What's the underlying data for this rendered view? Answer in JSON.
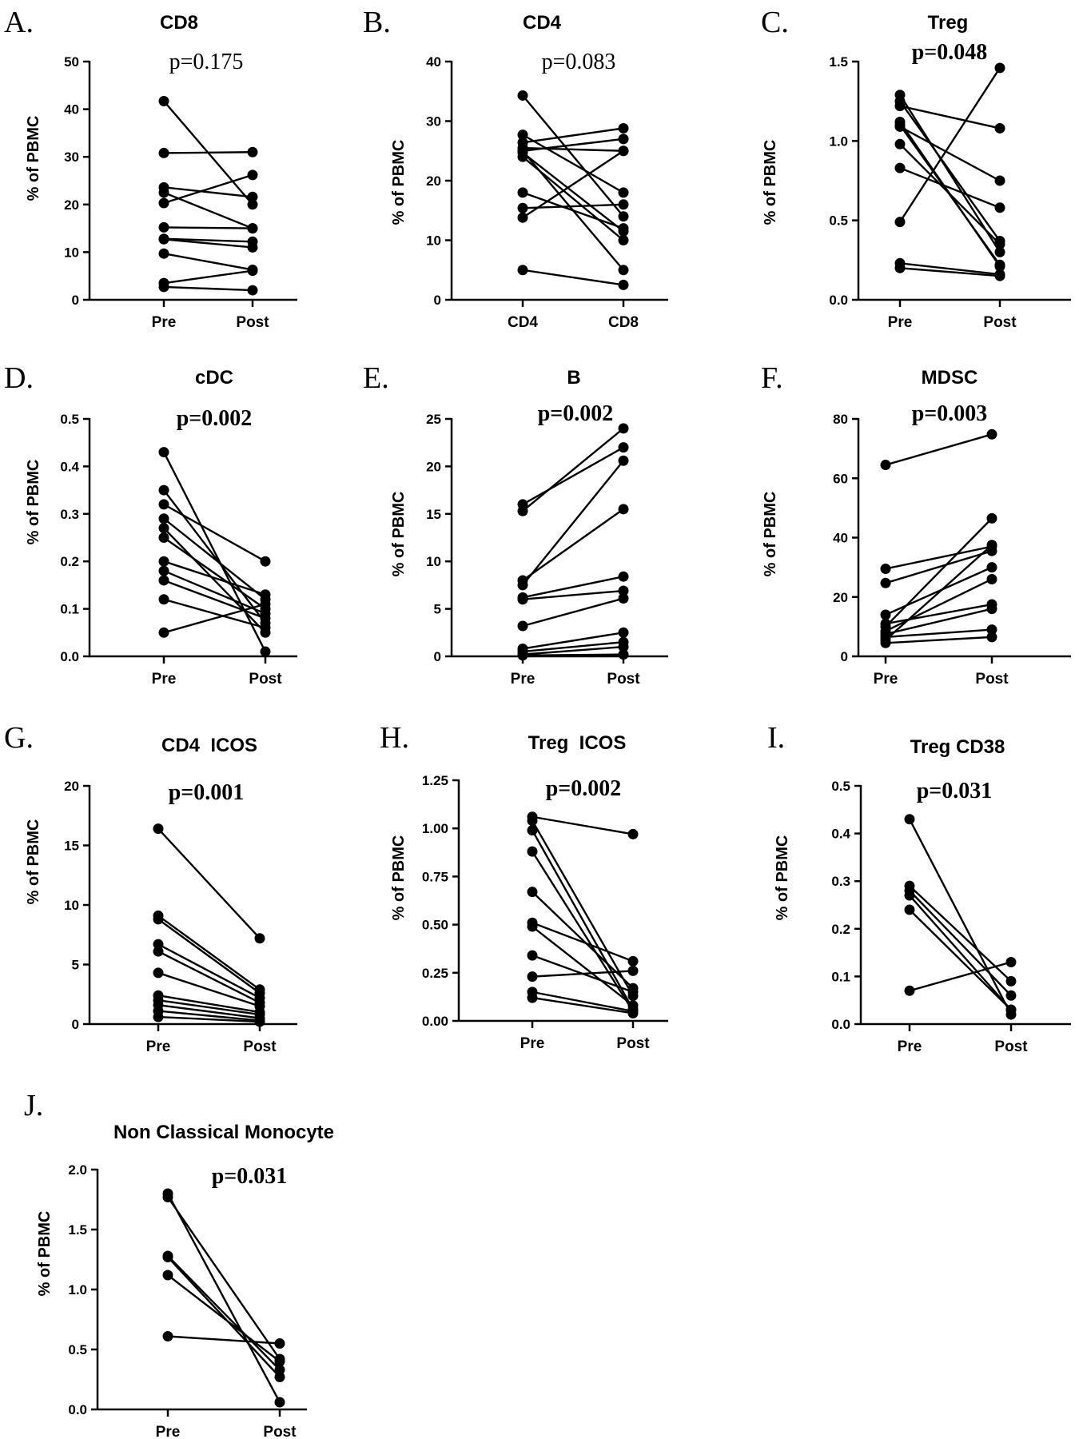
{
  "chart_data": [
    {
      "letter": "A.",
      "type": "line",
      "title": "CD8",
      "p_value": "p=0.175",
      "p_bold": false,
      "ylabel": "% of PBMC",
      "categories": [
        "Pre",
        "Post"
      ],
      "ylim": [
        0,
        50
      ],
      "yticks": [
        "0",
        "10",
        "20",
        "30",
        "40",
        "50"
      ],
      "pairs": [
        [
          41.7,
          20.0
        ],
        [
          30.8,
          31.0
        ],
        [
          23.6,
          21.6
        ],
        [
          22.5,
          15.0
        ],
        [
          20.3,
          26.2
        ],
        [
          15.2,
          15.0
        ],
        [
          12.8,
          12.2
        ],
        [
          12.7,
          11.0
        ],
        [
          9.7,
          6.3
        ],
        [
          3.5,
          6.1
        ],
        [
          2.7,
          2.0
        ]
      ]
    },
    {
      "letter": "B.",
      "type": "line",
      "title": "CD4",
      "p_value": "p=0.083",
      "p_bold": false,
      "ylabel": "% of PBMC",
      "categories": [
        "CD4",
        "CD8"
      ],
      "ylim": [
        0,
        40
      ],
      "yticks": [
        "0",
        "10",
        "20",
        "30",
        "40"
      ],
      "pairs": [
        [
          34.3,
          14.0
        ],
        [
          27.7,
          18.0
        ],
        [
          26.4,
          28.8
        ],
        [
          25.5,
          25.0
        ],
        [
          25.0,
          27.0
        ],
        [
          24.7,
          11.5
        ],
        [
          24.0,
          10.0
        ],
        [
          18.0,
          12.0
        ],
        [
          15.4,
          16.0
        ],
        [
          13.8,
          25.0
        ],
        [
          5.0,
          2.5
        ],
        [
          25.0,
          5.0
        ]
      ]
    },
    {
      "letter": "C.",
      "type": "line",
      "title": "Treg",
      "p_value": "p=0.048",
      "p_bold": true,
      "ylabel": "% of PBMC",
      "categories": [
        "Pre",
        "Post"
      ],
      "ylim": [
        0,
        1.5
      ],
      "yticks": [
        "0.0",
        "0.5",
        "1.0",
        "1.5"
      ],
      "pairs": [
        [
          1.29,
          0.3
        ],
        [
          1.25,
          0.37
        ],
        [
          1.22,
          1.08
        ],
        [
          1.12,
          0.21
        ],
        [
          1.09,
          0.75
        ],
        [
          0.98,
          0.35
        ],
        [
          0.83,
          0.58
        ],
        [
          0.49,
          1.46
        ],
        [
          0.23,
          0.16
        ],
        [
          0.2,
          0.15
        ],
        [
          1.1,
          0.22
        ]
      ]
    },
    {
      "letter": "D.",
      "type": "line",
      "title": "cDC",
      "p_value": "p=0.002",
      "p_bold": true,
      "ylabel": "% of PBMC",
      "categories": [
        "Pre",
        "Post"
      ],
      "ylim": [
        0,
        0.5
      ],
      "yticks": [
        "0.0",
        "0.1",
        "0.2",
        "0.3",
        "0.4",
        "0.5"
      ],
      "pairs": [
        [
          0.43,
          0.01
        ],
        [
          0.35,
          0.07
        ],
        [
          0.32,
          0.2
        ],
        [
          0.29,
          0.12
        ],
        [
          0.27,
          0.05
        ],
        [
          0.25,
          0.1
        ],
        [
          0.2,
          0.13
        ],
        [
          0.18,
          0.09
        ],
        [
          0.16,
          0.08
        ],
        [
          0.12,
          0.06
        ],
        [
          0.05,
          0.11
        ]
      ]
    },
    {
      "letter": "E.",
      "type": "line",
      "title": "B",
      "p_value": "p=0.002",
      "p_bold": true,
      "ylabel": "% of PBMC",
      "categories": [
        "Pre",
        "Post"
      ],
      "ylim": [
        0,
        25
      ],
      "yticks": [
        "0",
        "5",
        "10",
        "15",
        "20",
        "25"
      ],
      "pairs": [
        [
          16.0,
          22.0
        ],
        [
          15.3,
          24.0
        ],
        [
          8.0,
          15.5
        ],
        [
          7.5,
          20.6
        ],
        [
          6.2,
          8.4
        ],
        [
          6.0,
          6.9
        ],
        [
          3.2,
          6.1
        ],
        [
          0.8,
          2.5
        ],
        [
          0.5,
          1.5
        ],
        [
          0.2,
          1.0
        ],
        [
          0.1,
          0.2
        ]
      ]
    },
    {
      "letter": "F.",
      "type": "line",
      "title": "MDSC",
      "p_value": "p=0.003",
      "p_bold": true,
      "ylabel": "% of PBMC",
      "categories": [
        "Pre",
        "Post"
      ],
      "ylim": [
        0,
        80
      ],
      "yticks": [
        "0",
        "20",
        "40",
        "60",
        "80"
      ],
      "pairs": [
        [
          64.5,
          74.8
        ],
        [
          29.5,
          37.0
        ],
        [
          24.7,
          35.5
        ],
        [
          14.0,
          30.0
        ],
        [
          11.0,
          17.5
        ],
        [
          10.0,
          46.5
        ],
        [
          8.5,
          26.0
        ],
        [
          7.5,
          16.0
        ],
        [
          6.5,
          9.0
        ],
        [
          5.5,
          37.5
        ],
        [
          4.5,
          6.5
        ]
      ]
    },
    {
      "letter": "G.",
      "type": "line",
      "title": "CD4  ICOS",
      "p_value": "p=0.001",
      "p_bold": true,
      "ylabel": "% of PBMC",
      "categories": [
        "Pre",
        "Post"
      ],
      "ylim": [
        0,
        20
      ],
      "yticks": [
        "0",
        "5",
        "10",
        "15",
        "20"
      ],
      "pairs": [
        [
          16.4,
          7.2
        ],
        [
          9.1,
          2.9
        ],
        [
          8.8,
          2.6
        ],
        [
          6.7,
          2.2
        ],
        [
          6.1,
          1.8
        ],
        [
          4.3,
          1.5
        ],
        [
          2.4,
          1.0
        ],
        [
          2.0,
          0.8
        ],
        [
          1.6,
          0.5
        ],
        [
          1.1,
          0.3
        ],
        [
          0.6,
          0.2
        ]
      ]
    },
    {
      "letter": "H.",
      "type": "line",
      "title": "Treg  ICOS",
      "p_value": "p=0.002",
      "p_bold": true,
      "ylabel": "% of PBMC",
      "categories": [
        "Pre",
        "Post"
      ],
      "ylim": [
        0,
        1.25
      ],
      "yticks": [
        "0.00",
        "0.25",
        "0.50",
        "0.75",
        "1.00",
        "1.25"
      ],
      "pairs": [
        [
          1.06,
          0.97
        ],
        [
          1.04,
          0.13
        ],
        [
          0.99,
          0.06
        ],
        [
          0.88,
          0.05
        ],
        [
          0.67,
          0.17
        ],
        [
          0.51,
          0.31
        ],
        [
          0.49,
          0.08
        ],
        [
          0.34,
          0.15
        ],
        [
          0.23,
          0.26
        ],
        [
          0.15,
          0.05
        ],
        [
          0.12,
          0.04
        ]
      ]
    },
    {
      "letter": "I.",
      "type": "line",
      "title": "Treg CD38",
      "p_value": "p=0.031",
      "p_bold": true,
      "ylabel": "% of PBMC",
      "categories": [
        "Pre",
        "Post"
      ],
      "ylim": [
        0,
        0.5
      ],
      "yticks": [
        "0.0",
        "0.1",
        "0.2",
        "0.3",
        "0.4",
        "0.5"
      ],
      "pairs": [
        [
          0.43,
          0.02
        ],
        [
          0.29,
          0.09
        ],
        [
          0.28,
          0.06
        ],
        [
          0.27,
          0.03
        ],
        [
          0.24,
          0.03
        ],
        [
          0.07,
          0.13
        ]
      ]
    },
    {
      "letter": "J.",
      "type": "line",
      "title": "Non Classical Monocyte",
      "p_value": "p=0.031",
      "p_bold": true,
      "ylabel": "% of PBMC",
      "categories": [
        "Pre",
        "Post"
      ],
      "ylim": [
        0,
        2.0
      ],
      "yticks": [
        "0.0",
        "0.5",
        "1.0",
        "1.5",
        "2.0"
      ],
      "pairs": [
        [
          1.8,
          0.06
        ],
        [
          1.77,
          0.42
        ],
        [
          1.28,
          0.33
        ],
        [
          1.27,
          0.27
        ],
        [
          1.12,
          0.4
        ],
        [
          0.61,
          0.55
        ]
      ]
    }
  ]
}
